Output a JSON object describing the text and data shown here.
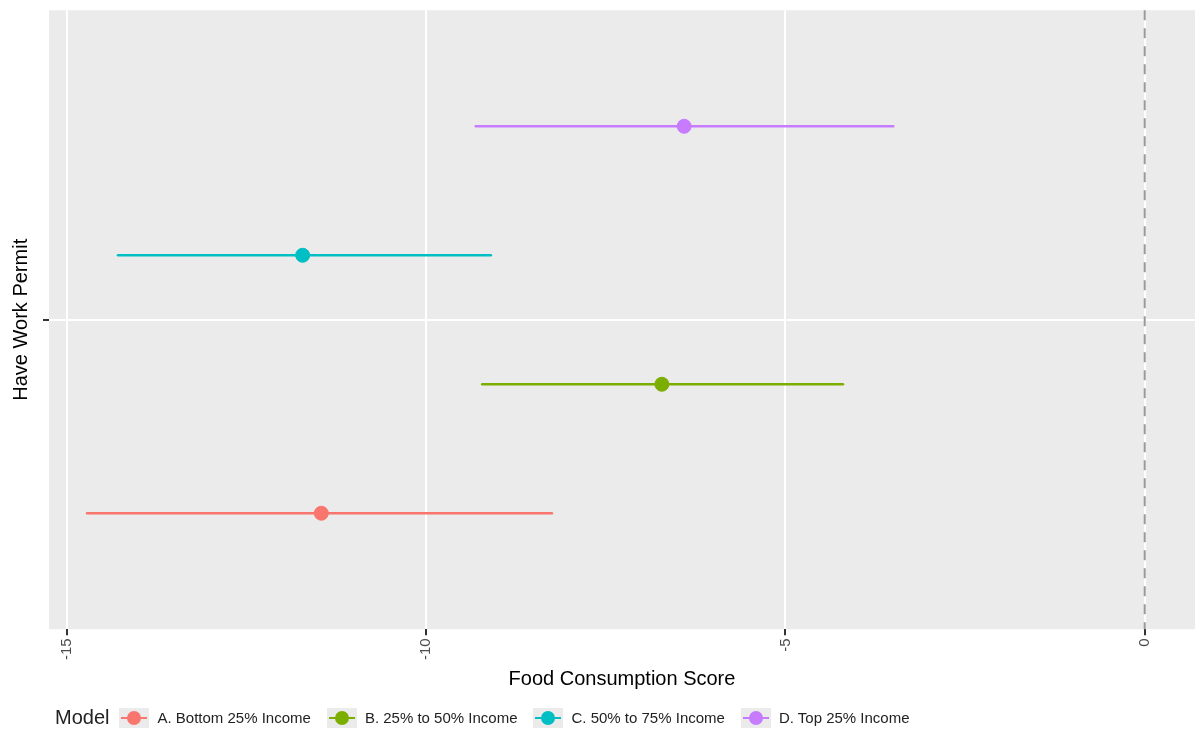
{
  "chart_data": {
    "type": "scatter",
    "orientation": "horizontal",
    "xlabel": "Food Consumption Score",
    "ylabel": "Have Work Permit",
    "categories": [
      null
    ],
    "xlim": [
      -15.25,
      0.7
    ],
    "xticks": [
      -15,
      -10,
      -5,
      0
    ],
    "grid": true,
    "marker": "circle",
    "legend": "bottom",
    "legend_title": "Model",
    "ref_lines": [
      {
        "axis": "x",
        "value": 0,
        "line_style": "dashed",
        "color": "#999999"
      }
    ],
    "series": [
      {
        "name": "A. Bottom 25% Income",
        "color": "#f8766d",
        "values": [
          -11.46
        ],
        "errors": [
          [
            -14.72,
            -8.25
          ]
        ]
      },
      {
        "name": "B. 25% to 50% Income",
        "color": "#7cae00",
        "values": [
          -6.72
        ],
        "errors": [
          [
            -9.22,
            -4.2
          ]
        ]
      },
      {
        "name": "C. 50% to 75% Income",
        "color": "#00bfc4",
        "values": [
          -11.72
        ],
        "errors": [
          [
            -14.29,
            -9.1
          ]
        ]
      },
      {
        "name": "D. Top 25% Income",
        "color": "#c77cff",
        "values": [
          -6.41
        ],
        "errors": [
          [
            -9.31,
            -3.5
          ]
        ]
      }
    ]
  }
}
